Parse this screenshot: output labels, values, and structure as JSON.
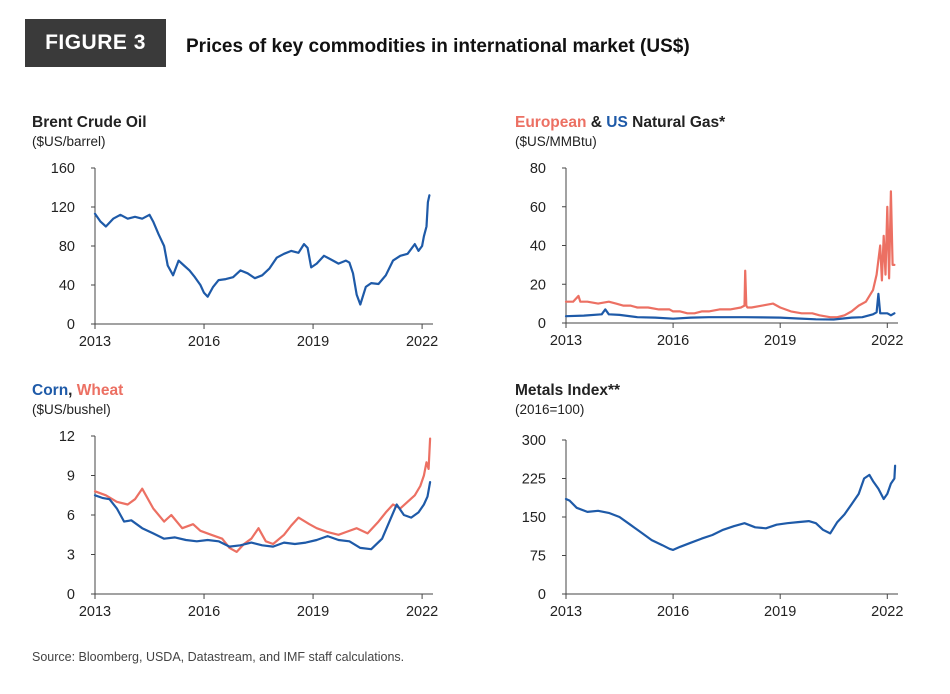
{
  "figure": {
    "label": "FIGURE 3",
    "title": "Prices of key commodities in international market (US$)",
    "source": "Source: Bloomberg, USDA, Datastream, and IMF staff calculations."
  },
  "colors": {
    "blue": "#1e5aa8",
    "red": "#ec7063",
    "axis": "#444444"
  },
  "chart_data": [
    {
      "type": "line",
      "title": "Brent Crude Oil",
      "unit": "($US/barrel)",
      "xlim": [
        2013,
        2022.3
      ],
      "ylim": [
        0,
        160
      ],
      "xticks": [
        2013,
        2016,
        2019,
        2022
      ],
      "yticks": [
        0,
        40,
        80,
        120,
        160
      ],
      "grid": false,
      "series": [
        {
          "color": "#1e5aa8",
          "x": [
            2013.0,
            2013.15,
            2013.3,
            2013.5,
            2013.7,
            2013.9,
            2014.1,
            2014.3,
            2014.5,
            2014.6,
            2014.75,
            2014.9,
            2015.0,
            2015.15,
            2015.3,
            2015.45,
            2015.6,
            2015.75,
            2015.9,
            2016.0,
            2016.1,
            2016.25,
            2016.4,
            2016.6,
            2016.8,
            2017.0,
            2017.2,
            2017.4,
            2017.6,
            2017.8,
            2018.0,
            2018.2,
            2018.4,
            2018.6,
            2018.75,
            2018.85,
            2018.95,
            2019.1,
            2019.3,
            2019.5,
            2019.7,
            2019.9,
            2020.0,
            2020.1,
            2020.2,
            2020.3,
            2020.45,
            2020.6,
            2020.8,
            2021.0,
            2021.2,
            2021.4,
            2021.6,
            2021.8,
            2021.9,
            2022.0,
            2022.05,
            2022.12,
            2022.16,
            2022.2
          ],
          "y": [
            113,
            105,
            100,
            108,
            112,
            108,
            110,
            108,
            112,
            105,
            92,
            80,
            60,
            50,
            65,
            60,
            55,
            48,
            40,
            32,
            28,
            38,
            45,
            46,
            48,
            55,
            52,
            47,
            50,
            57,
            68,
            72,
            75,
            73,
            82,
            78,
            58,
            62,
            70,
            66,
            62,
            65,
            63,
            52,
            30,
            20,
            38,
            42,
            41,
            50,
            65,
            70,
            72,
            82,
            75,
            80,
            90,
            100,
            125,
            132
          ]
        }
      ]
    },
    {
      "type": "line",
      "title_parts": [
        "European",
        " & ",
        "US",
        " Natural Gas*"
      ],
      "unit": "($US/MMBtu)",
      "xlim": [
        2013,
        2022.3
      ],
      "ylim": [
        0,
        80
      ],
      "xticks": [
        2013,
        2016,
        2019,
        2022
      ],
      "yticks": [
        0,
        20,
        40,
        60,
        80
      ],
      "grid": false,
      "series": [
        {
          "name": "European",
          "color": "#ec7063",
          "x": [
            2013.0,
            2013.2,
            2013.35,
            2013.4,
            2013.6,
            2013.9,
            2014.2,
            2014.4,
            2014.6,
            2014.8,
            2015.0,
            2015.3,
            2015.6,
            2015.9,
            2016.0,
            2016.2,
            2016.4,
            2016.6,
            2016.8,
            2017.0,
            2017.3,
            2017.6,
            2017.9,
            2018.0,
            2018.02,
            2018.05,
            2018.08,
            2018.2,
            2018.5,
            2018.8,
            2019.0,
            2019.3,
            2019.6,
            2019.9,
            2020.1,
            2020.4,
            2020.6,
            2020.8,
            2021.0,
            2021.2,
            2021.4,
            2021.6,
            2021.7,
            2021.8,
            2021.85,
            2021.9,
            2021.95,
            2022.0,
            2022.05,
            2022.1,
            2022.15,
            2022.2
          ],
          "y": [
            11,
            11,
            14,
            11,
            11,
            10,
            11,
            10,
            9,
            9,
            8,
            8,
            7,
            7,
            6,
            6,
            5,
            5,
            6,
            6,
            7,
            7,
            8,
            9,
            27,
            9,
            8,
            8,
            9,
            10,
            8,
            6,
            5,
            5,
            4,
            3,
            3,
            4,
            6,
            9,
            11,
            17,
            25,
            40,
            22,
            45,
            25,
            60,
            23,
            68,
            30,
            30
          ]
        },
        {
          "name": "US",
          "color": "#1e5aa8",
          "x": [
            2013.0,
            2013.5,
            2014.0,
            2014.1,
            2014.2,
            2014.5,
            2015.0,
            2015.5,
            2016.0,
            2016.5,
            2017.0,
            2017.5,
            2018.0,
            2018.5,
            2019.0,
            2019.5,
            2020.0,
            2020.5,
            2021.0,
            2021.3,
            2021.6,
            2021.7,
            2021.75,
            2021.8,
            2021.9,
            2022.0,
            2022.1,
            2022.2
          ],
          "y": [
            3.5,
            3.8,
            4.5,
            7,
            4.5,
            4.2,
            3,
            2.8,
            2.2,
            2.8,
            3,
            3,
            3,
            2.9,
            2.8,
            2.3,
            1.9,
            1.8,
            2.8,
            3,
            4.5,
            5.5,
            15,
            5,
            5,
            5,
            4,
            5
          ]
        }
      ]
    },
    {
      "type": "line",
      "title_parts": [
        "Corn",
        ", ",
        "Wheat"
      ],
      "unit": "($US/bushel)",
      "xlim": [
        2013,
        2022.3
      ],
      "ylim": [
        0,
        12
      ],
      "xticks": [
        2013,
        2016,
        2019,
        2022
      ],
      "yticks": [
        0,
        3,
        6,
        9,
        12
      ],
      "grid": false,
      "series": [
        {
          "name": "Wheat",
          "color": "#ec7063",
          "x": [
            2013.0,
            2013.3,
            2013.6,
            2013.9,
            2014.1,
            2014.3,
            2014.6,
            2014.9,
            2015.1,
            2015.4,
            2015.7,
            2015.9,
            2016.2,
            2016.5,
            2016.7,
            2016.9,
            2017.1,
            2017.3,
            2017.5,
            2017.7,
            2017.9,
            2018.2,
            2018.4,
            2018.6,
            2018.9,
            2019.1,
            2019.4,
            2019.7,
            2019.9,
            2020.2,
            2020.5,
            2020.8,
            2021.0,
            2021.2,
            2021.4,
            2021.6,
            2021.8,
            2021.95,
            2022.05,
            2022.12,
            2022.18,
            2022.22
          ],
          "y": [
            7.8,
            7.5,
            7,
            6.8,
            7.2,
            8,
            6.5,
            5.5,
            6,
            5,
            5.3,
            4.8,
            4.5,
            4.2,
            3.5,
            3.2,
            3.8,
            4.2,
            5,
            4,
            3.8,
            4.5,
            5.2,
            5.8,
            5.3,
            5,
            4.7,
            4.5,
            4.7,
            5,
            4.6,
            5.5,
            6.2,
            6.8,
            6.5,
            7,
            7.5,
            8.2,
            9,
            10,
            9.5,
            11.8
          ]
        },
        {
          "name": "Corn",
          "color": "#1e5aa8",
          "x": [
            2013.0,
            2013.2,
            2013.4,
            2013.6,
            2013.8,
            2014.0,
            2014.3,
            2014.6,
            2014.9,
            2015.2,
            2015.5,
            2015.8,
            2016.1,
            2016.4,
            2016.7,
            2017.0,
            2017.3,
            2017.6,
            2017.9,
            2018.2,
            2018.5,
            2018.8,
            2019.1,
            2019.4,
            2019.7,
            2020.0,
            2020.3,
            2020.6,
            2020.9,
            2021.1,
            2021.3,
            2021.5,
            2021.7,
            2021.9,
            2022.05,
            2022.15,
            2022.22
          ],
          "y": [
            7.5,
            7.3,
            7.2,
            6.5,
            5.5,
            5.6,
            5.0,
            4.6,
            4.2,
            4.3,
            4.1,
            4.0,
            4.1,
            4.0,
            3.6,
            3.7,
            3.9,
            3.7,
            3.6,
            3.9,
            3.8,
            3.9,
            4.1,
            4.4,
            4.1,
            4.0,
            3.5,
            3.4,
            4.2,
            5.5,
            6.8,
            6.0,
            5.8,
            6.2,
            6.8,
            7.4,
            8.5
          ]
        }
      ]
    },
    {
      "type": "line",
      "title": "Metals Index**",
      "unit": "(2016=100)",
      "xlim": [
        2013,
        2022.3
      ],
      "ylim": [
        0,
        300
      ],
      "xticks": [
        2013,
        2016,
        2019,
        2022
      ],
      "yticks": [
        0,
        75,
        150,
        225,
        300
      ],
      "grid": false,
      "series": [
        {
          "color": "#1e5aa8",
          "x": [
            2013.0,
            2013.1,
            2013.3,
            2013.6,
            2013.9,
            2014.2,
            2014.5,
            2014.8,
            2015.1,
            2015.4,
            2015.7,
            2015.9,
            2016.0,
            2016.2,
            2016.5,
            2016.8,
            2017.1,
            2017.4,
            2017.7,
            2018.0,
            2018.3,
            2018.6,
            2018.9,
            2019.2,
            2019.5,
            2019.8,
            2020.0,
            2020.2,
            2020.4,
            2020.6,
            2020.8,
            2021.0,
            2021.2,
            2021.35,
            2021.5,
            2021.6,
            2021.75,
            2021.9,
            2022.0,
            2022.1,
            2022.2,
            2022.22
          ],
          "y": [
            185,
            182,
            168,
            160,
            162,
            158,
            150,
            135,
            120,
            105,
            95,
            88,
            86,
            92,
            100,
            108,
            115,
            125,
            132,
            138,
            130,
            128,
            135,
            138,
            140,
            142,
            138,
            125,
            118,
            140,
            155,
            175,
            195,
            225,
            232,
            220,
            205,
            185,
            195,
            215,
            225,
            250
          ]
        }
      ]
    }
  ]
}
